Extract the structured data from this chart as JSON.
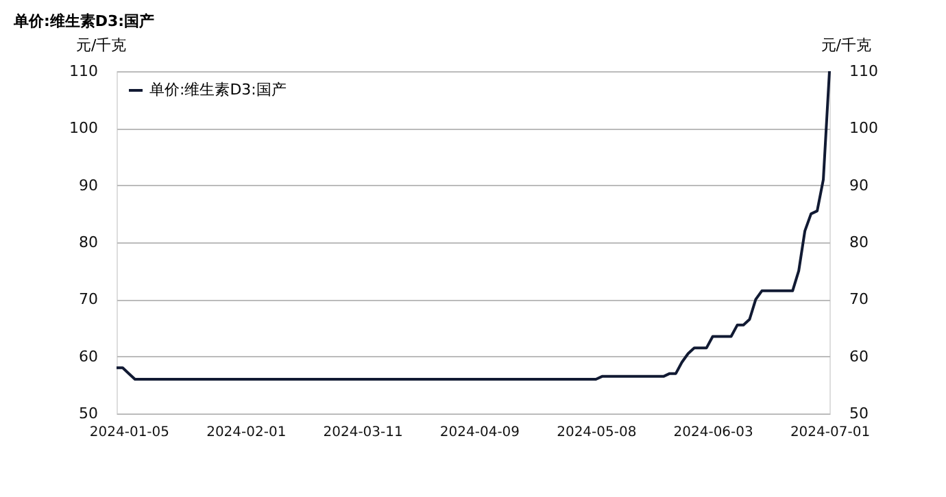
{
  "chart_data": {
    "type": "line",
    "title": "单价:维生素D3:国产",
    "ylabel": "元/千克",
    "y2label": "元/千克",
    "categories": [
      null,
      null,
      "2024-01-05",
      null,
      null,
      null,
      null,
      null,
      null,
      null,
      null,
      null,
      null,
      null,
      null,
      null,
      null,
      null,
      null,
      null,
      null,
      "2024-02-01",
      null,
      null,
      null,
      null,
      null,
      null,
      null,
      null,
      null,
      null,
      null,
      null,
      null,
      null,
      null,
      null,
      null,
      null,
      "2024-03-11",
      null,
      null,
      null,
      null,
      null,
      null,
      null,
      null,
      null,
      null,
      null,
      null,
      null,
      null,
      null,
      null,
      null,
      null,
      "2024-04-09",
      null,
      null,
      null,
      null,
      null,
      null,
      null,
      null,
      null,
      null,
      null,
      null,
      null,
      null,
      null,
      null,
      null,
      null,
      "2024-05-08",
      null,
      null,
      null,
      null,
      null,
      null,
      null,
      null,
      null,
      null,
      null,
      null,
      null,
      null,
      null,
      null,
      null,
      null,
      "2024-06-03",
      null,
      null,
      null,
      null,
      null,
      null,
      null,
      null,
      null,
      null,
      null,
      null,
      null,
      null,
      null,
      null,
      null,
      null,
      "2024-07-01"
    ],
    "series": [
      {
        "name": "单价:维生素D3:国产",
        "color": "#111a33",
        "values": [
          58,
          58,
          57,
          56,
          56,
          56,
          56,
          56,
          56,
          56,
          56,
          56,
          56,
          56,
          56,
          56,
          56,
          56,
          56,
          56,
          56,
          56,
          56,
          56,
          56,
          56,
          56,
          56,
          56,
          56,
          56,
          56,
          56,
          56,
          56,
          56,
          56,
          56,
          56,
          56,
          56,
          56,
          56,
          56,
          56,
          56,
          56,
          56,
          56,
          56,
          56,
          56,
          56,
          56,
          56,
          56,
          56,
          56,
          56,
          56,
          56,
          56,
          56,
          56,
          56,
          56,
          56,
          56,
          56,
          56,
          56,
          56,
          56,
          56,
          56,
          56,
          56,
          56,
          56,
          56.5,
          56.5,
          56.5,
          56.5,
          56.5,
          56.5,
          56.5,
          56.5,
          56.5,
          56.5,
          56.5,
          57,
          57,
          59,
          60.5,
          61.5,
          61.5,
          61.5,
          63.5,
          63.5,
          63.5,
          63.5,
          65.5,
          65.5,
          66.5,
          70,
          71.5,
          71.5,
          71.5,
          71.5,
          71.5,
          71.5,
          75,
          82,
          85,
          85.5,
          91,
          110
        ]
      }
    ],
    "ylim": [
      50,
      110
    ],
    "yticks": [
      50,
      60,
      70,
      80,
      90,
      100,
      110
    ],
    "y2lim": [
      50,
      110
    ],
    "y2ticks": [
      50,
      60,
      70,
      80,
      90,
      100,
      110
    ],
    "grid": "y",
    "legend": "top left",
    "marker": "none",
    "line_style": "solid"
  }
}
